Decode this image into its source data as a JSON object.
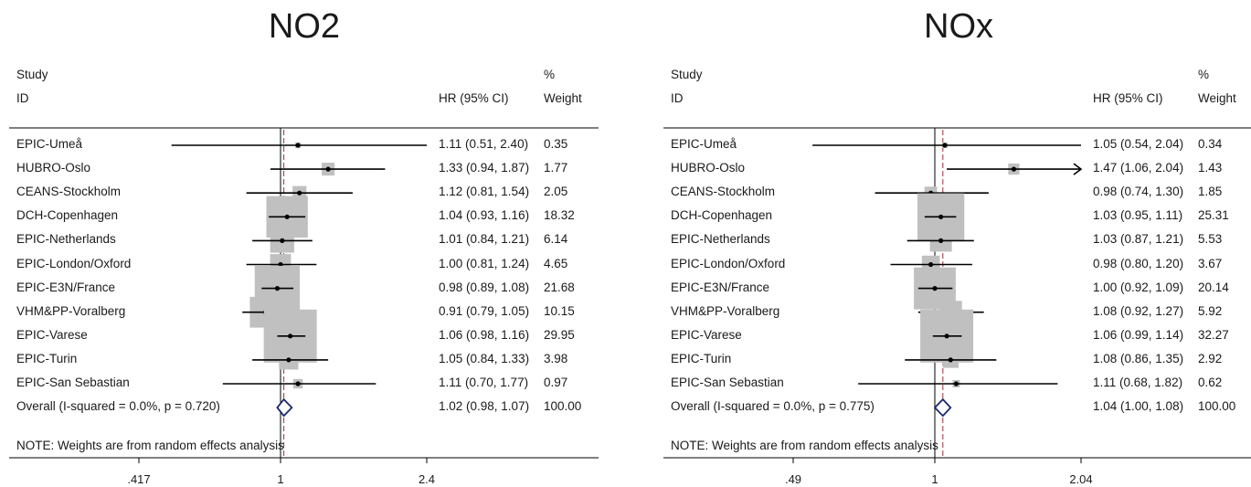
{
  "header": {
    "study_line1": "Study",
    "study_line2": "ID",
    "hr_label": "HR (95% CI)",
    "weight_line1": "%",
    "weight_line2": "Weight"
  },
  "note": "NOTE: Weights are from random effects analysis",
  "colors": {
    "box": "#c0c0c0",
    "overall_diamond": "#1b2a6b",
    "reference_dashed": "#a0303a",
    "line": "#000000"
  },
  "chart_data": [
    {
      "type": "forest",
      "title": "NO2",
      "xscale": "log",
      "xlim": [
        0.417,
        2.4
      ],
      "ticks": [
        ".417",
        "1",
        "2.4"
      ],
      "tick_values": [
        0.417,
        1,
        2.4
      ],
      "null_line": 1,
      "overall_line": 1.02,
      "studies": [
        {
          "id": "EPIC-Umeå",
          "hr": 1.11,
          "lo": 0.51,
          "hi": 2.4,
          "ci_text": "1.11 (0.51, 2.40)",
          "weight": 0.35,
          "weight_text": "0.35"
        },
        {
          "id": "HUBRO-Oslo",
          "hr": 1.33,
          "lo": 0.94,
          "hi": 1.87,
          "ci_text": "1.33 (0.94, 1.87)",
          "weight": 1.77,
          "weight_text": "1.77"
        },
        {
          "id": "CEANS-Stockholm",
          "hr": 1.12,
          "lo": 0.81,
          "hi": 1.54,
          "ci_text": "1.12 (0.81, 1.54)",
          "weight": 2.05,
          "weight_text": "2.05"
        },
        {
          "id": "DCH-Copenhagen",
          "hr": 1.04,
          "lo": 0.93,
          "hi": 1.16,
          "ci_text": "1.04 (0.93, 1.16)",
          "weight": 18.32,
          "weight_text": "18.32"
        },
        {
          "id": "EPIC-Netherlands",
          "hr": 1.01,
          "lo": 0.84,
          "hi": 1.21,
          "ci_text": "1.01 (0.84, 1.21)",
          "weight": 6.14,
          "weight_text": "6.14"
        },
        {
          "id": "EPIC-London/Oxford",
          "hr": 1.0,
          "lo": 0.81,
          "hi": 1.24,
          "ci_text": "1.00 (0.81, 1.24)",
          "weight": 4.65,
          "weight_text": "4.65"
        },
        {
          "id": "EPIC-E3N/France",
          "hr": 0.98,
          "lo": 0.89,
          "hi": 1.08,
          "ci_text": "0.98 (0.89, 1.08)",
          "weight": 21.68,
          "weight_text": "21.68"
        },
        {
          "id": "VHM&PP-Voralberg",
          "hr": 0.91,
          "lo": 0.79,
          "hi": 1.05,
          "ci_text": "0.91 (0.79, 1.05)",
          "weight": 10.15,
          "weight_text": "10.15"
        },
        {
          "id": "EPIC-Varese",
          "hr": 1.06,
          "lo": 0.98,
          "hi": 1.16,
          "ci_text": "1.06 (0.98, 1.16)",
          "weight": 29.95,
          "weight_text": "29.95"
        },
        {
          "id": "EPIC-Turin",
          "hr": 1.05,
          "lo": 0.84,
          "hi": 1.33,
          "ci_text": "1.05 (0.84, 1.33)",
          "weight": 3.98,
          "weight_text": "3.98"
        },
        {
          "id": "EPIC-San Sebastian",
          "hr": 1.11,
          "lo": 0.7,
          "hi": 1.77,
          "ci_text": "1.11 (0.70, 1.77)",
          "weight": 0.97,
          "weight_text": "0.97"
        }
      ],
      "overall": {
        "id": "Overall  (I-squared = 0.0%, p = 0.720)",
        "hr": 1.02,
        "lo": 0.98,
        "hi": 1.07,
        "ci_text": "1.02 (0.98, 1.07)",
        "weight_text": "100.00"
      }
    },
    {
      "type": "forest",
      "title": "NOx",
      "xscale": "log",
      "xlim": [
        0.49,
        2.04
      ],
      "ticks": [
        ".49",
        "1",
        "2.04"
      ],
      "tick_values": [
        0.49,
        1,
        2.04
      ],
      "null_line": 1,
      "overall_line": 1.04,
      "studies": [
        {
          "id": "EPIC-Umeå",
          "hr": 1.05,
          "lo": 0.54,
          "hi": 2.04,
          "ci_text": "1.05 (0.54, 2.04)",
          "weight": 0.34,
          "weight_text": "0.34"
        },
        {
          "id": "HUBRO-Oslo",
          "hr": 1.47,
          "lo": 1.06,
          "hi": 2.04,
          "ci_text": "1.47 (1.06, 2.04)",
          "weight": 1.43,
          "weight_text": "1.43",
          "arrow": true
        },
        {
          "id": "CEANS-Stockholm",
          "hr": 0.98,
          "lo": 0.74,
          "hi": 1.3,
          "ci_text": "0.98 (0.74, 1.30)",
          "weight": 1.85,
          "weight_text": "1.85"
        },
        {
          "id": "DCH-Copenhagen",
          "hr": 1.03,
          "lo": 0.95,
          "hi": 1.11,
          "ci_text": "1.03 (0.95, 1.11)",
          "weight": 25.31,
          "weight_text": "25.31"
        },
        {
          "id": "EPIC-Netherlands",
          "hr": 1.03,
          "lo": 0.87,
          "hi": 1.21,
          "ci_text": "1.03 (0.87, 1.21)",
          "weight": 5.53,
          "weight_text": "5.53"
        },
        {
          "id": "EPIC-London/Oxford",
          "hr": 0.98,
          "lo": 0.8,
          "hi": 1.2,
          "ci_text": "0.98 (0.80, 1.20)",
          "weight": 3.67,
          "weight_text": "3.67"
        },
        {
          "id": "EPIC-E3N/France",
          "hr": 1.0,
          "lo": 0.92,
          "hi": 1.09,
          "ci_text": "1.00 (0.92, 1.09)",
          "weight": 20.14,
          "weight_text": "20.14"
        },
        {
          "id": "VHM&PP-Voralberg",
          "hr": 1.08,
          "lo": 0.92,
          "hi": 1.27,
          "ci_text": "1.08 (0.92, 1.27)",
          "weight": 5.92,
          "weight_text": "5.92"
        },
        {
          "id": "EPIC-Varese",
          "hr": 1.06,
          "lo": 0.99,
          "hi": 1.14,
          "ci_text": "1.06 (0.99, 1.14)",
          "weight": 32.27,
          "weight_text": "32.27"
        },
        {
          "id": "EPIC-Turin",
          "hr": 1.08,
          "lo": 0.86,
          "hi": 1.35,
          "ci_text": "1.08 (0.86, 1.35)",
          "weight": 2.92,
          "weight_text": "2.92"
        },
        {
          "id": "EPIC-San Sebastian",
          "hr": 1.11,
          "lo": 0.68,
          "hi": 1.82,
          "ci_text": "1.11 (0.68, 1.82)",
          "weight": 0.62,
          "weight_text": "0.62"
        }
      ],
      "overall": {
        "id": "Overall  (I-squared = 0.0%, p = 0.775)",
        "hr": 1.04,
        "lo": 1.0,
        "hi": 1.08,
        "ci_text": "1.04 (1.00, 1.08)",
        "weight_text": "100.00"
      }
    }
  ]
}
